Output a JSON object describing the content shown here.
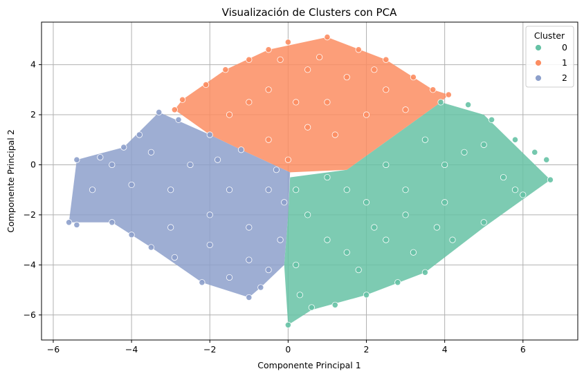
{
  "chart_data": {
    "type": "scatter",
    "title": "Visualización de Clusters con PCA",
    "xlabel": "Componente Principal 1",
    "ylabel": "Componente Principal 2",
    "xlim": [
      -6.3,
      7.4
    ],
    "ylim": [
      -7.0,
      5.7
    ],
    "xticks": [
      -6,
      -4,
      -2,
      0,
      2,
      4,
      6
    ],
    "yticks": [
      -6,
      -4,
      -2,
      0,
      2,
      4
    ],
    "grid": true,
    "legend": {
      "title": "Cluster",
      "position": "top-right",
      "entries": [
        {
          "label": "0",
          "color": "#66c2a5"
        },
        {
          "label": "1",
          "color": "#fc8d62"
        },
        {
          "label": "2",
          "color": "#8da0cb"
        }
      ]
    },
    "series": [
      {
        "name": "0",
        "color": "#66c2a5",
        "description_region": "right / lower-right diamond lobe",
        "points": [
          [
            6.7,
            -0.6
          ],
          [
            6.3,
            0.5
          ],
          [
            6.6,
            0.2
          ],
          [
            5.8,
            1.0
          ],
          [
            5.2,
            1.8
          ],
          [
            4.6,
            2.4
          ],
          [
            3.9,
            2.5
          ],
          [
            5.0,
            -2.3
          ],
          [
            4.2,
            -3.0
          ],
          [
            3.5,
            -4.3
          ],
          [
            2.8,
            -4.7
          ],
          [
            2.0,
            -5.2
          ],
          [
            1.2,
            -5.6
          ],
          [
            0.6,
            -5.7
          ],
          [
            0.3,
            -5.2
          ],
          [
            0.0,
            -6.4
          ],
          [
            0.2,
            -4.0
          ],
          [
            1.5,
            -3.5
          ],
          [
            2.5,
            -3.0
          ],
          [
            3.0,
            -2.0
          ],
          [
            4.0,
            -1.5
          ],
          [
            5.5,
            -0.5
          ],
          [
            4.5,
            0.5
          ],
          [
            3.5,
            1.0
          ],
          [
            2.5,
            0.0
          ],
          [
            1.5,
            -1.0
          ],
          [
            0.5,
            -2.0
          ],
          [
            1.0,
            -0.5
          ],
          [
            2.0,
            -1.5
          ],
          [
            3.0,
            -1.0
          ],
          [
            4.0,
            0.0
          ],
          [
            5.0,
            0.8
          ],
          [
            3.8,
            -2.5
          ],
          [
            2.2,
            -2.5
          ],
          [
            1.0,
            -3.0
          ],
          [
            0.2,
            -1.0
          ],
          [
            1.8,
            -4.2
          ],
          [
            3.2,
            -3.5
          ],
          [
            5.8,
            -1.0
          ],
          [
            6.0,
            -1.2
          ]
        ]
      },
      {
        "name": "1",
        "color": "#fc8d62",
        "description_region": "top diamond lobe",
        "points": [
          [
            1.0,
            5.1
          ],
          [
            0.0,
            4.9
          ],
          [
            -0.5,
            4.6
          ],
          [
            1.8,
            4.6
          ],
          [
            2.5,
            4.2
          ],
          [
            3.2,
            3.5
          ],
          [
            3.7,
            3.0
          ],
          [
            4.1,
            2.8
          ],
          [
            -1.0,
            4.2
          ],
          [
            -1.6,
            3.8
          ],
          [
            -2.1,
            3.2
          ],
          [
            -2.7,
            2.6
          ],
          [
            -2.9,
            2.2
          ],
          [
            -1.5,
            2.0
          ],
          [
            -0.5,
            1.0
          ],
          [
            0.0,
            0.2
          ],
          [
            0.5,
            1.5
          ],
          [
            1.0,
            2.5
          ],
          [
            2.0,
            2.0
          ],
          [
            3.0,
            2.2
          ],
          [
            1.5,
            3.5
          ],
          [
            0.5,
            3.8
          ],
          [
            -0.5,
            3.0
          ],
          [
            -1.0,
            2.5
          ],
          [
            2.5,
            3.0
          ],
          [
            0.2,
            2.5
          ],
          [
            1.2,
            1.2
          ],
          [
            -0.2,
            4.2
          ],
          [
            2.2,
            3.8
          ],
          [
            0.8,
            4.3
          ]
        ]
      },
      {
        "name": "2",
        "color": "#8da0cb",
        "description_region": "left / lower-left diamond lobe",
        "points": [
          [
            -5.6,
            -2.3
          ],
          [
            -5.4,
            -2.4
          ],
          [
            -5.4,
            0.2
          ],
          [
            -5.0,
            -1.0
          ],
          [
            -4.8,
            0.3
          ],
          [
            -4.2,
            0.7
          ],
          [
            -3.3,
            2.1
          ],
          [
            -2.8,
            1.8
          ],
          [
            -2.0,
            1.2
          ],
          [
            -1.2,
            0.6
          ],
          [
            -0.3,
            -0.2
          ],
          [
            -0.1,
            -1.5
          ],
          [
            -0.2,
            -3.0
          ],
          [
            -0.5,
            -4.2
          ],
          [
            -0.7,
            -4.9
          ],
          [
            -1.0,
            -5.3
          ],
          [
            -1.5,
            -4.5
          ],
          [
            -2.2,
            -4.7
          ],
          [
            -2.9,
            -3.7
          ],
          [
            -3.5,
            -3.3
          ],
          [
            -4.0,
            -2.8
          ],
          [
            -4.5,
            -2.3
          ],
          [
            -3.0,
            -1.0
          ],
          [
            -2.0,
            -2.0
          ],
          [
            -1.0,
            -2.5
          ],
          [
            -1.5,
            -1.0
          ],
          [
            -2.5,
            0.0
          ],
          [
            -3.5,
            0.5
          ],
          [
            -4.0,
            -0.8
          ],
          [
            -3.0,
            -2.5
          ],
          [
            -2.0,
            -3.2
          ],
          [
            -1.0,
            -3.8
          ],
          [
            -0.5,
            -1.0
          ],
          [
            -1.8,
            0.2
          ],
          [
            -3.8,
            1.2
          ],
          [
            -4.5,
            0.0
          ]
        ]
      }
    ]
  }
}
